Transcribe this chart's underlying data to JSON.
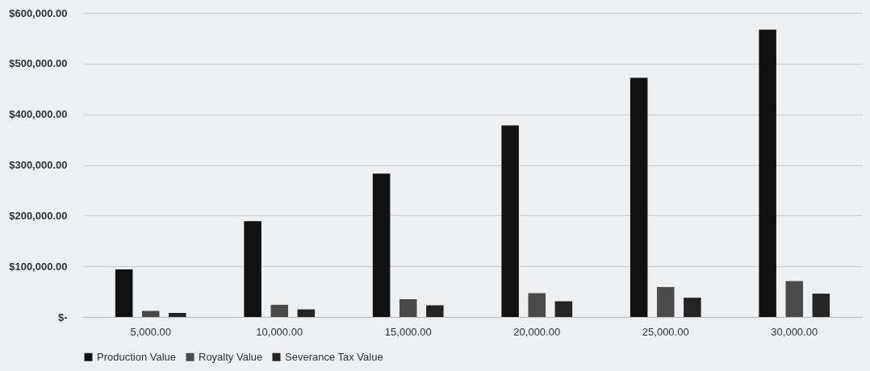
{
  "chart_data": {
    "type": "bar",
    "categories": [
      "5,000.00",
      "10,000.00",
      "15,000.00",
      "20,000.00",
      "25,000.00",
      "30,000.00"
    ],
    "series": [
      {
        "name": "Production Value",
        "color": "#111111",
        "values": [
          94000,
          189000,
          283000,
          378000,
          472000,
          567000
        ]
      },
      {
        "name": "Royalty Value",
        "color": "#4a4a4a",
        "values": [
          12000,
          24000,
          35000,
          47000,
          59000,
          71000
        ]
      },
      {
        "name": "Severance Tax Value",
        "color": "#242424",
        "values": [
          8000,
          15000,
          23000,
          31000,
          38000,
          46000
        ]
      }
    ],
    "ylim": [
      0,
      600000
    ],
    "yticks": [
      {
        "value": 0,
        "label": "$-"
      },
      {
        "value": 100000,
        "label": "$100,000.00"
      },
      {
        "value": 200000,
        "label": "$200,000.00"
      },
      {
        "value": 300000,
        "label": "$300,000.00"
      },
      {
        "value": 400000,
        "label": "$400,000.00"
      },
      {
        "value": 500000,
        "label": "$500,000.00"
      },
      {
        "value": 600000,
        "label": "$600,000.00"
      }
    ],
    "grid": "y",
    "legend": "bottom"
  }
}
